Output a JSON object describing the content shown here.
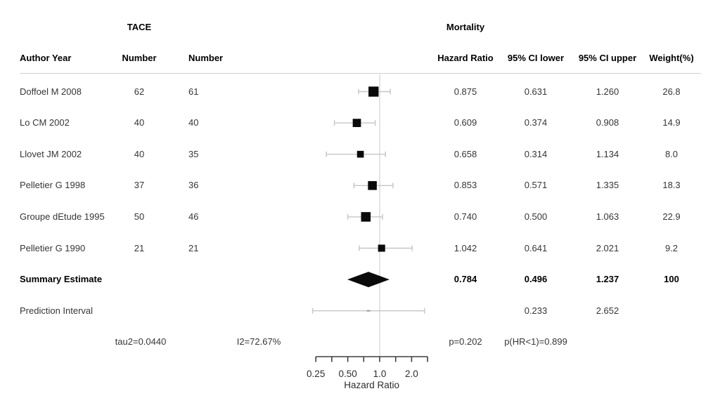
{
  "header": {
    "group_tace": "TACE",
    "group_outcome": "Mortality",
    "columns": {
      "author": "Author Year",
      "n_tace": "Number",
      "n_control": "Number",
      "hr": "Hazard Ratio",
      "ci_lower": "95% CI lower",
      "ci_upper": "95% CI upper",
      "weight": "Weight(%)"
    }
  },
  "chart_data": {
    "type": "forest",
    "x_scale": "log",
    "reference_line": 1.0,
    "axis": {
      "label": "Hazard Ratio",
      "ticks": [
        0.25,
        0.35355,
        0.5,
        0.70711,
        1.0,
        1.41421,
        2.0,
        2.82843
      ],
      "labeled_ticks": [
        {
          "v": 0.25,
          "t": "0.25"
        },
        {
          "v": 0.5,
          "t": "0.50"
        },
        {
          "v": 1.0,
          "t": "1.0"
        },
        {
          "v": 2.0,
          "t": "2.0"
        }
      ],
      "range": [
        0.25,
        2.82843
      ]
    },
    "studies": [
      {
        "author": "Doffoel M 2008",
        "n_tace": "62",
        "n_control": "61",
        "hr": 0.875,
        "ci_lower": 0.631,
        "ci_upper": 1.26,
        "weight": 26.8,
        "hr_text": "0.875",
        "lower_text": "0.631",
        "upper_text": "1.260",
        "weight_text": "26.8"
      },
      {
        "author": "Lo CM 2002",
        "n_tace": "40",
        "n_control": "40",
        "hr": 0.609,
        "ci_lower": 0.374,
        "ci_upper": 0.908,
        "weight": 14.9,
        "hr_text": "0.609",
        "lower_text": "0.374",
        "upper_text": "0.908",
        "weight_text": "14.9"
      },
      {
        "author": "Llovet JM 2002",
        "n_tace": "40",
        "n_control": "35",
        "hr": 0.658,
        "ci_lower": 0.314,
        "ci_upper": 1.134,
        "weight": 8.0,
        "hr_text": "0.658",
        "lower_text": "0.314",
        "upper_text": "1.134",
        "weight_text": "8.0"
      },
      {
        "author": "Pelletier G 1998",
        "n_tace": "37",
        "n_control": "36",
        "hr": 0.853,
        "ci_lower": 0.571,
        "ci_upper": 1.335,
        "weight": 18.3,
        "hr_text": "0.853",
        "lower_text": "0.571",
        "upper_text": "1.335",
        "weight_text": "18.3"
      },
      {
        "author": "Groupe dEtude 1995",
        "n_tace": "50",
        "n_control": "46",
        "hr": 0.74,
        "ci_lower": 0.5,
        "ci_upper": 1.063,
        "weight": 22.9,
        "hr_text": "0.740",
        "lower_text": "0.500",
        "upper_text": "1.063",
        "weight_text": "22.9"
      },
      {
        "author": "Pelletier G 1990",
        "n_tace": "21",
        "n_control": "21",
        "hr": 1.042,
        "ci_lower": 0.641,
        "ci_upper": 2.021,
        "weight": 9.2,
        "hr_text": "1.042",
        "lower_text": "0.641",
        "upper_text": "2.021",
        "weight_text": "9.2"
      }
    ],
    "summary": {
      "label": "Summary Estimate",
      "hr": 0.784,
      "ci_lower": 0.496,
      "ci_upper": 1.237,
      "hr_text": "0.784",
      "lower_text": "0.496",
      "upper_text": "1.237",
      "weight_text": "100"
    },
    "prediction": {
      "label": "Prediction Interval",
      "ci_lower": 0.233,
      "ci_upper": 2.652,
      "lower_text": "0.233",
      "upper_text": "2.652"
    },
    "stats": {
      "tau2": "tau2=0.0440",
      "i2": "I2=72.67%",
      "p": "p=0.202",
      "p_hr": "p(HR<1)=0.899"
    }
  },
  "colors": {
    "marker": "#0a0a0a",
    "ci_line": "#c6c6c6",
    "reference_line": "#d8d8d8",
    "axis": "#3e3e3e",
    "rule": "#cfcfcf",
    "prediction_center": "#999999",
    "text": "#363636",
    "header_text": "#000000"
  }
}
